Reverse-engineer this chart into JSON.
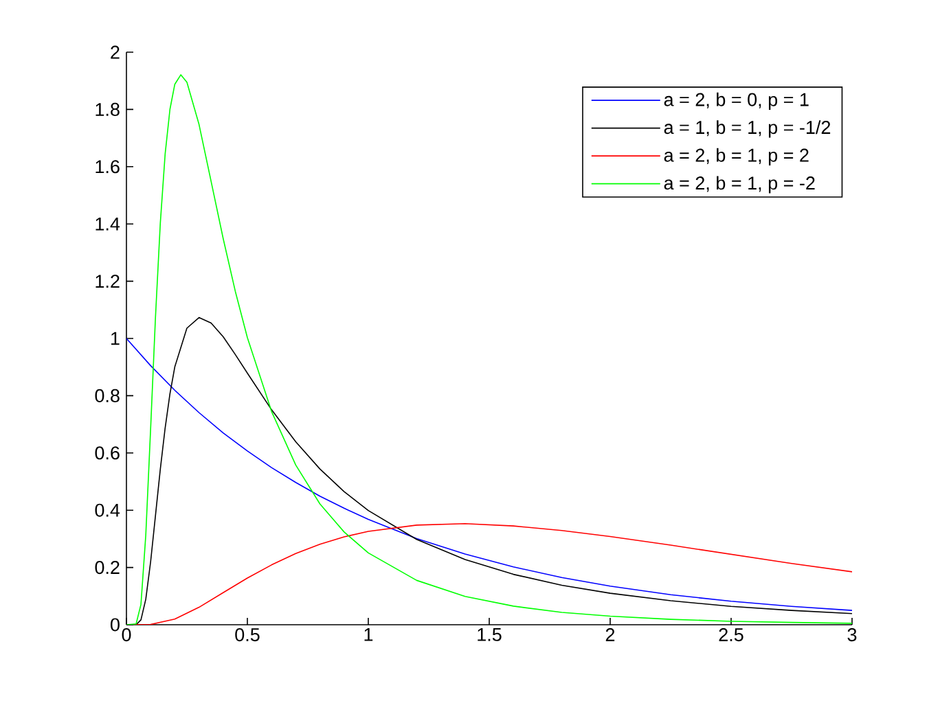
{
  "chart_data": {
    "type": "line",
    "xlim": [
      0,
      3
    ],
    "ylim": [
      0,
      2
    ],
    "xticks": [
      0,
      0.5,
      1,
      1.5,
      2,
      2.5,
      3
    ],
    "yticks": [
      0,
      0.2,
      0.4,
      0.6,
      0.8,
      1,
      1.2,
      1.4,
      1.6,
      1.8,
      2
    ],
    "legend": "top right",
    "line_style": "solid",
    "series": [
      {
        "name": "a = 2, b = 0, p = 1",
        "color": "#0000ff",
        "x": [
          0,
          0.1,
          0.2,
          0.3,
          0.4,
          0.5,
          0.6,
          0.7,
          0.8,
          0.9,
          1,
          1.2,
          1.4,
          1.6,
          1.8,
          2,
          2.25,
          2.5,
          2.75,
          3
        ],
        "values": [
          1,
          0.905,
          0.819,
          0.741,
          0.67,
          0.607,
          0.549,
          0.497,
          0.449,
          0.407,
          0.368,
          0.301,
          0.247,
          0.202,
          0.165,
          0.135,
          0.105,
          0.082,
          0.064,
          0.05
        ]
      },
      {
        "name": "a = 1, b = 1, p = -1/2",
        "color": "#000000",
        "x": [
          0,
          0.04,
          0.06,
          0.08,
          0.1,
          0.12,
          0.14,
          0.16,
          0.18,
          0.2,
          0.25,
          0.3,
          0.35,
          0.4,
          0.45,
          0.5,
          0.6,
          0.7,
          0.8,
          0.9,
          1,
          1.2,
          1.4,
          1.6,
          1.8,
          2,
          2.25,
          2.5,
          2.75,
          3
        ],
        "values": [
          0,
          0,
          0.017,
          0.089,
          0.22,
          0.381,
          0.543,
          0.687,
          0.807,
          0.901,
          1.036,
          1.073,
          1.054,
          1.006,
          0.944,
          0.879,
          0.751,
          0.639,
          0.544,
          0.465,
          0.399,
          0.298,
          0.228,
          0.176,
          0.138,
          0.11,
          0.084,
          0.064,
          0.05,
          0.039
        ]
      },
      {
        "name": "a = 2, b = 1, p = 2",
        "color": "#ff0000",
        "x": [
          0,
          0.1,
          0.2,
          0.3,
          0.4,
          0.5,
          0.6,
          0.7,
          0.8,
          0.9,
          1,
          1.2,
          1.4,
          1.6,
          1.8,
          2,
          2.25,
          2.5,
          2.75,
          3
        ],
        "values": [
          0,
          0.001,
          0.02,
          0.061,
          0.112,
          0.163,
          0.209,
          0.249,
          0.281,
          0.307,
          0.326,
          0.348,
          0.353,
          0.345,
          0.329,
          0.308,
          0.278,
          0.246,
          0.214,
          0.185
        ]
      },
      {
        "name": "a = 2, b = 1, p = -2",
        "color": "#00ff00",
        "x": [
          0,
          0.04,
          0.06,
          0.08,
          0.1,
          0.12,
          0.14,
          0.16,
          0.18,
          0.2,
          0.225,
          0.25,
          0.3,
          0.35,
          0.4,
          0.45,
          0.5,
          0.6,
          0.7,
          0.8,
          0.9,
          1,
          1.2,
          1.4,
          1.6,
          1.8,
          2,
          2.25,
          2.5,
          2.75,
          3
        ],
        "values": [
          0,
          0.003,
          0.071,
          0.313,
          0.685,
          1.073,
          1.402,
          1.644,
          1.801,
          1.888,
          1.921,
          1.895,
          1.748,
          1.549,
          1.349,
          1.165,
          1.003,
          0.745,
          0.558,
          0.422,
          0.324,
          0.251,
          0.155,
          0.099,
          0.065,
          0.043,
          0.03,
          0.019,
          0.012,
          0.008,
          0.005
        ]
      }
    ]
  }
}
